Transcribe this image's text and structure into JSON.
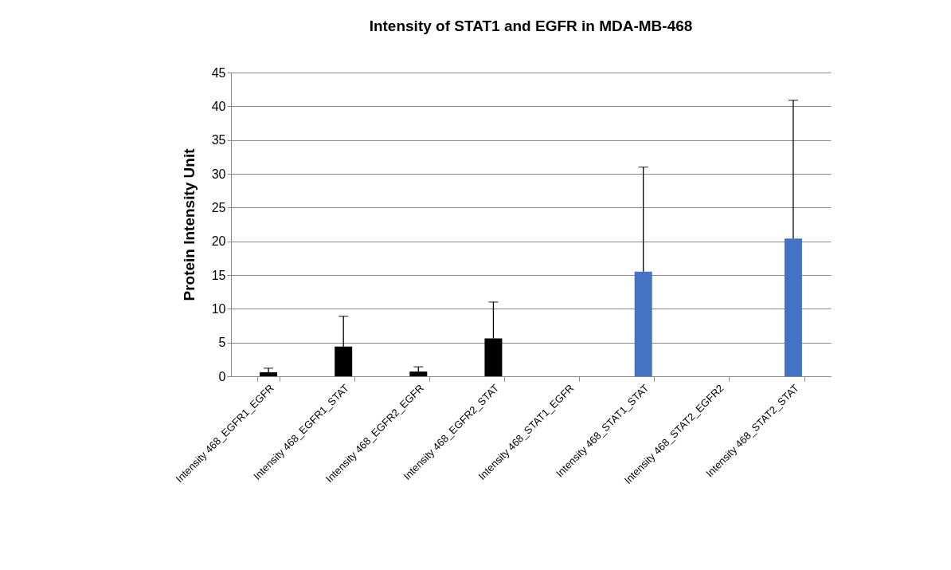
{
  "chart_data": {
    "type": "bar",
    "title": "Intensity of STAT1 and EGFR in MDA-MB-468",
    "ylabel": "Protein Intensity Unit",
    "categories": [
      "Intensity 468_EGFR1_EGFR",
      "Intensity 468_EGFR1_STAT",
      "Intensity 468_EGFR2_EGFR",
      "Intensity 468_EGFR2_STAT",
      "Intensity 468_STAT1_EGFR",
      "Intensity 468_STAT1_STAT",
      "Intensity 468_STAT2_EGFR2",
      "Intensity 468_STAT2_STAT"
    ],
    "values": [
      0.6,
      4.4,
      0.7,
      5.6,
      0,
      15.5,
      0,
      20.4
    ],
    "colors": [
      "#000000",
      "#000000",
      "#000000",
      "#000000",
      "#000000",
      "#4472c4",
      "#000000",
      "#4472c4"
    ],
    "errors": [
      [
        0.6,
        1.2
      ],
      [
        4.4,
        8.9
      ],
      [
        0.7,
        1.4
      ],
      [
        5.6,
        11.0
      ],
      null,
      [
        15.5,
        31.0
      ],
      null,
      [
        20.4,
        40.9
      ]
    ],
    "ylim": [
      0,
      45
    ],
    "yticks": [
      0,
      5,
      10,
      15,
      20,
      25,
      30,
      35,
      40,
      45
    ],
    "grid": "y"
  }
}
